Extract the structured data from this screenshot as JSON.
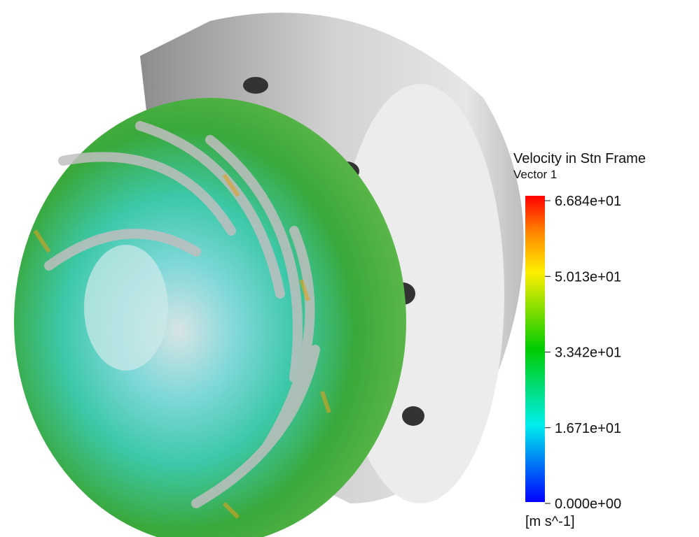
{
  "legend": {
    "title": "Velocity in Stn Frame",
    "subtitle": "Vector 1",
    "ticks": [
      "6.684e+01",
      "5.013e+01",
      "3.342e+01",
      "1.671e+01",
      "0.000e+00"
    ],
    "units": "[m s^-1]"
  }
}
